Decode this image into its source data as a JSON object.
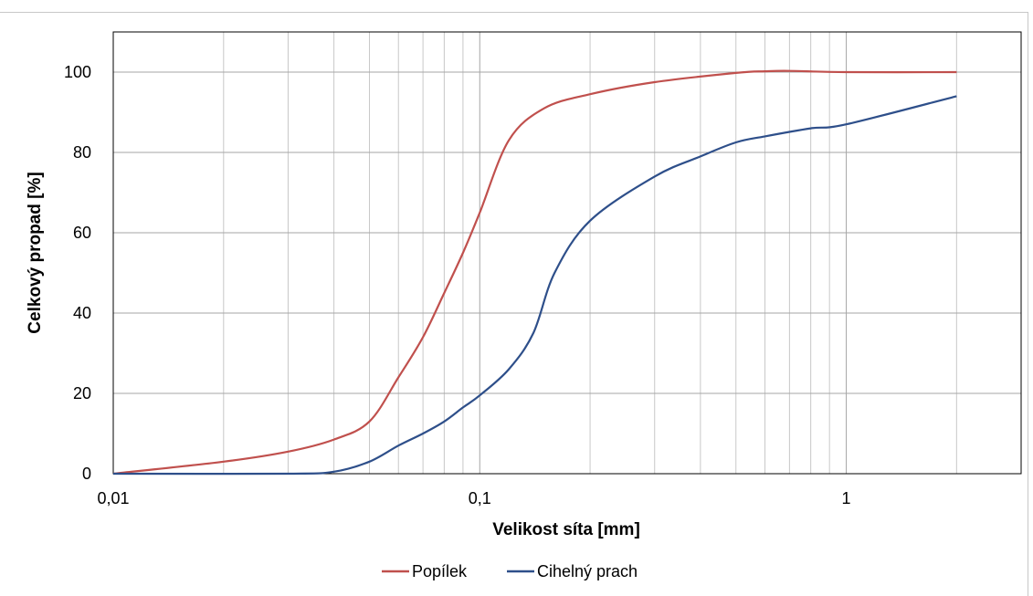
{
  "chart_data": {
    "type": "line",
    "title": "",
    "xlabel": "Velikost síta  [mm]",
    "ylabel": "Celkový propad [%]",
    "xscale": "log",
    "xlim": [
      0.01,
      3
    ],
    "ylim": [
      0,
      110
    ],
    "xticks": [
      {
        "value": 0.01,
        "label": "0,01"
      },
      {
        "value": 0.1,
        "label": "0,1"
      },
      {
        "value": 1,
        "label": "1"
      }
    ],
    "yticks": [
      {
        "value": 0,
        "label": "0"
      },
      {
        "value": 20,
        "label": "20"
      },
      {
        "value": 40,
        "label": "40"
      },
      {
        "value": 60,
        "label": "60"
      },
      {
        "value": 80,
        "label": "80"
      },
      {
        "value": 100,
        "label": "100"
      }
    ],
    "grid": true,
    "legend": "bottom",
    "series": [
      {
        "name": "Popílek",
        "color": "#c0504d",
        "points": [
          [
            0.01,
            0
          ],
          [
            0.02,
            3
          ],
          [
            0.03,
            5.5
          ],
          [
            0.04,
            8.5
          ],
          [
            0.05,
            13
          ],
          [
            0.06,
            24
          ],
          [
            0.07,
            34
          ],
          [
            0.08,
            45
          ],
          [
            0.09,
            55
          ],
          [
            0.1,
            65
          ],
          [
            0.12,
            83
          ],
          [
            0.15,
            91
          ],
          [
            0.2,
            94.5
          ],
          [
            0.3,
            97.5
          ],
          [
            0.5,
            99.8
          ],
          [
            0.6,
            100.2
          ],
          [
            0.7,
            100.3
          ],
          [
            1,
            100
          ],
          [
            2,
            100
          ]
        ]
      },
      {
        "name": "Cihelný prach",
        "color": "#2e4f8a",
        "points": [
          [
            0.01,
            0
          ],
          [
            0.03,
            0
          ],
          [
            0.04,
            0.5
          ],
          [
            0.05,
            3
          ],
          [
            0.06,
            7
          ],
          [
            0.07,
            10
          ],
          [
            0.08,
            13
          ],
          [
            0.09,
            16.5
          ],
          [
            0.1,
            19.5
          ],
          [
            0.12,
            26
          ],
          [
            0.14,
            35
          ],
          [
            0.16,
            50
          ],
          [
            0.2,
            63
          ],
          [
            0.3,
            74
          ],
          [
            0.4,
            79
          ],
          [
            0.5,
            82.5
          ],
          [
            0.6,
            84
          ],
          [
            0.8,
            86
          ],
          [
            1,
            87
          ],
          [
            2,
            94
          ]
        ]
      }
    ]
  }
}
